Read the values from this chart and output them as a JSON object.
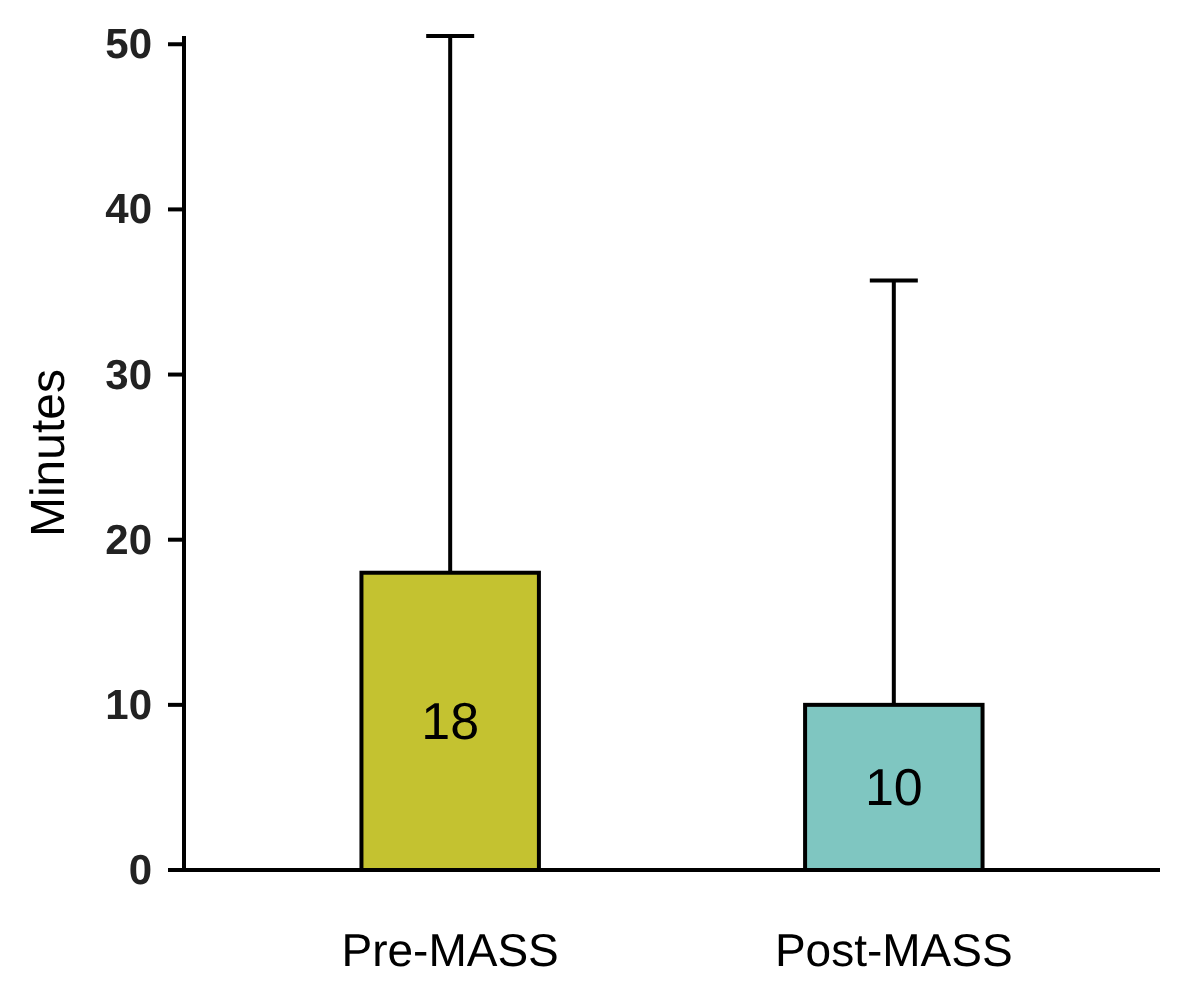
{
  "chart_data": {
    "type": "bar",
    "ylabel": "Minutes",
    "categories": [
      "Pre-MASS",
      "Post-MASS"
    ],
    "values": [
      18,
      10
    ],
    "colors": [
      "#c4c230",
      "#7fc6c1"
    ],
    "errors": [
      [
        18,
        50.5
      ],
      [
        10,
        35.7
      ]
    ],
    "ylim": [
      0,
      50.5
    ],
    "yticks": [
      0,
      10,
      20,
      30,
      40,
      50
    ],
    "data_labels": true
  }
}
